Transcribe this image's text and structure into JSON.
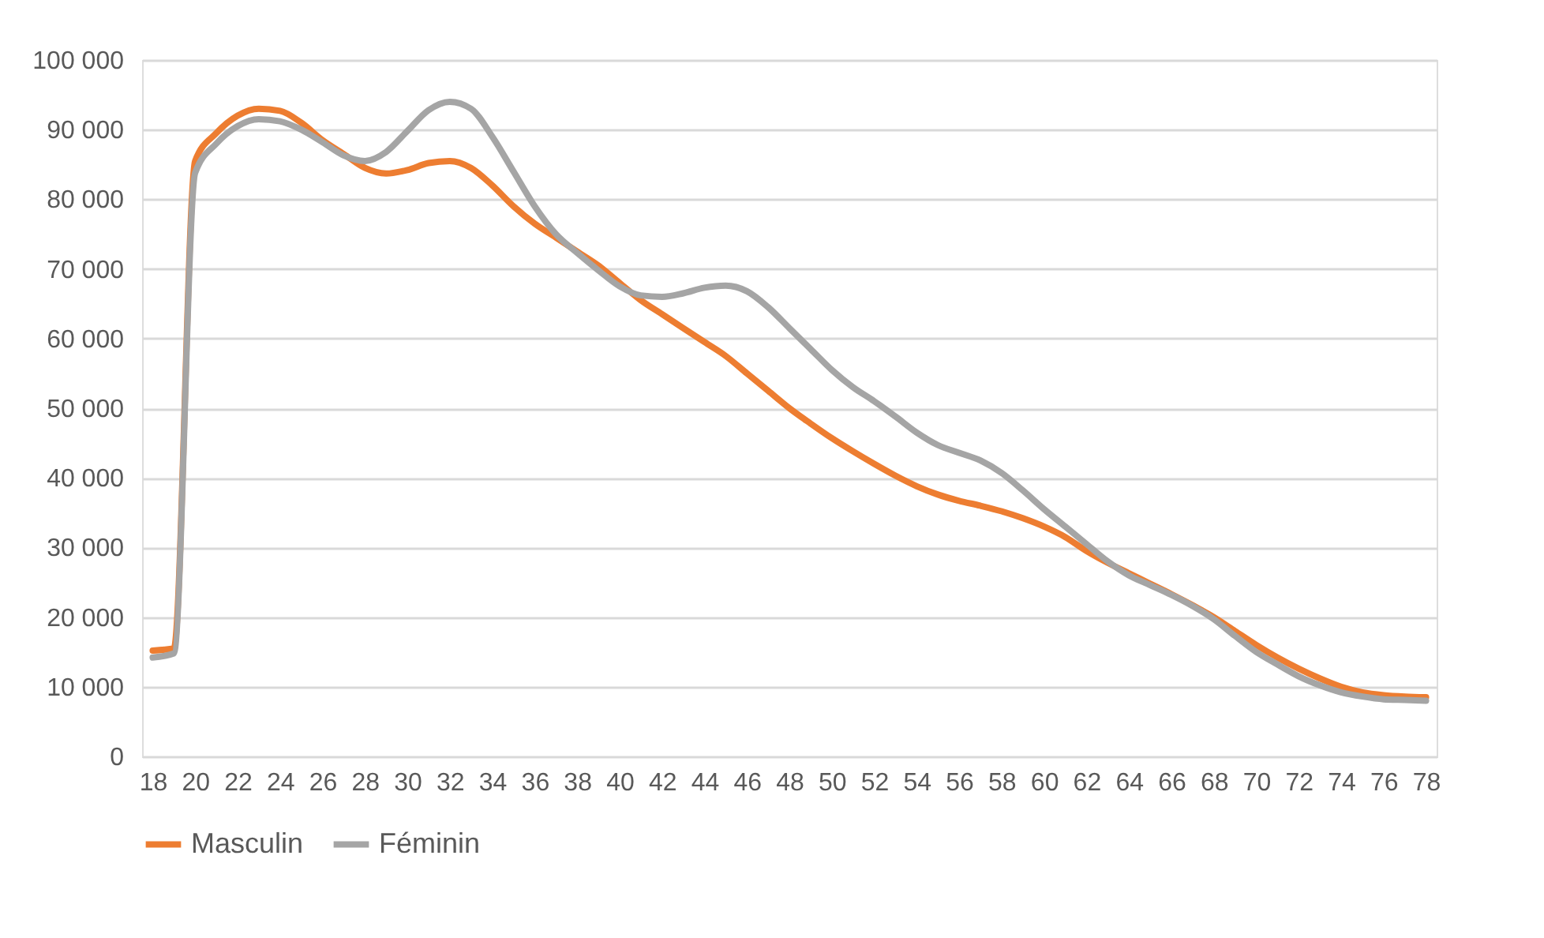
{
  "chart_data": {
    "type": "line",
    "categories": [
      "18",
      null,
      "20",
      null,
      "22",
      null,
      "24",
      null,
      "26",
      null,
      "28",
      null,
      "30",
      null,
      "32",
      null,
      "34",
      null,
      "36",
      null,
      "38",
      null,
      "40",
      null,
      "42",
      null,
      "44",
      null,
      "46",
      null,
      "48",
      null,
      "50",
      null,
      "52",
      null,
      "54",
      null,
      "56",
      null,
      "58",
      null,
      "60",
      null,
      "62",
      null,
      "64",
      null,
      "66",
      null,
      "68",
      null,
      "70",
      null,
      "72",
      null,
      "74",
      null,
      "76",
      null,
      "78"
    ],
    "series": [
      {
        "name": "Masculin",
        "color": "#ed7d31",
        "values": [
          15200,
          15500,
          85500,
          89500,
          92000,
          93000,
          92700,
          91000,
          88500,
          86500,
          84500,
          83700,
          84200,
          85200,
          85500,
          84500,
          82000,
          79000,
          76500,
          74500,
          72500,
          70500,
          68000,
          65500,
          63500,
          61500,
          59500,
          57500,
          55000,
          52500,
          50000,
          47800,
          45700,
          43800,
          42000,
          40300,
          38800,
          37600,
          36700,
          36000,
          35200,
          34200,
          33000,
          31500,
          29500,
          27800,
          26300,
          24800,
          23300,
          21700,
          20000,
          18000,
          16000,
          14200,
          12600,
          11200,
          10000,
          9200,
          8800,
          8600,
          8500
        ]
      },
      {
        "name": "Féminin",
        "color": "#a5a5a5",
        "values": [
          14200,
          14800,
          83800,
          88000,
          90500,
          91500,
          91200,
          90000,
          88200,
          86300,
          85500,
          86800,
          89800,
          92800,
          94000,
          93000,
          89000,
          84000,
          79000,
          75000,
          72300,
          69800,
          67500,
          66200,
          66000,
          66500,
          67300,
          67600,
          66800,
          64500,
          61500,
          58500,
          55500,
          53000,
          51000,
          48800,
          46500,
          44700,
          43600,
          42500,
          40700,
          38200,
          35500,
          33000,
          30500,
          28000,
          26000,
          24600,
          23200,
          21600,
          19700,
          17300,
          15000,
          13200,
          11500,
          10200,
          9200,
          8600,
          8200,
          8100,
          8000
        ]
      }
    ],
    "ylim": [
      0,
      100000
    ],
    "yticks": [
      {
        "value": 0,
        "label": "0"
      },
      {
        "value": 10000,
        "label": "10 000"
      },
      {
        "value": 20000,
        "label": "20 000"
      },
      {
        "value": 30000,
        "label": "30 000"
      },
      {
        "value": 40000,
        "label": "40 000"
      },
      {
        "value": 50000,
        "label": "50 000"
      },
      {
        "value": 60000,
        "label": "60 000"
      },
      {
        "value": 70000,
        "label": "70 000"
      },
      {
        "value": 80000,
        "label": "80 000"
      },
      {
        "value": 90000,
        "label": "90 000"
      },
      {
        "value": 100000,
        "label": "100 000"
      }
    ],
    "grid": "y",
    "legend": "bottom",
    "marker": "none",
    "line_style": "solid"
  }
}
